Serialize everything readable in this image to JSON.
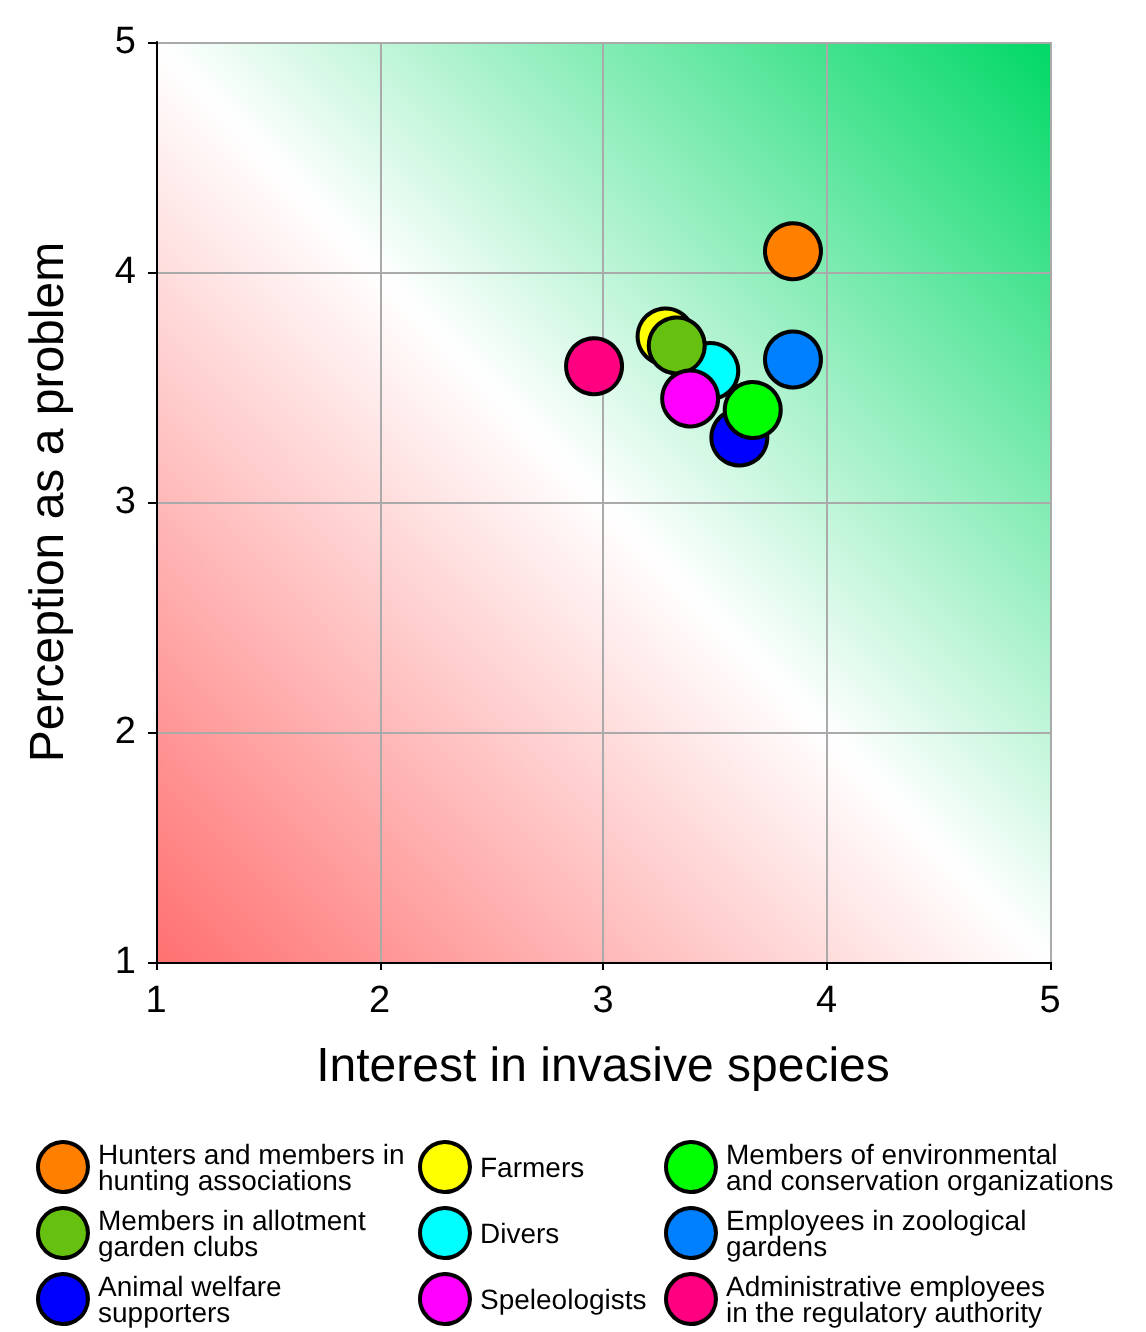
{
  "chart_data": {
    "type": "scatter",
    "xlabel": "Interest in invasive species",
    "ylabel": "Perception as a problem",
    "xlim": [
      1,
      5
    ],
    "xticks": [
      1,
      2,
      3,
      4,
      5
    ],
    "ylim": [
      1,
      5
    ],
    "yticks": [
      1,
      2,
      3,
      4,
      5
    ],
    "grid": true,
    "legend": "bottom",
    "marker": "circle",
    "series": [
      {
        "name": "Hunters and members in hunting associations",
        "color": "#ff8000",
        "x": [
          3.85
        ],
        "values": [
          4.09
        ]
      },
      {
        "name": "Farmers",
        "color": "#ffff00",
        "x": [
          3.28
        ],
        "values": [
          3.72
        ]
      },
      {
        "name": "Members of environmental and conservation organizations",
        "color": "#00ff00",
        "x": [
          3.67
        ],
        "values": [
          3.4
        ]
      },
      {
        "name": "Members in allotment garden clubs",
        "color": "#66c010",
        "x": [
          3.33
        ],
        "values": [
          3.68
        ]
      },
      {
        "name": "Divers",
        "color": "#00ffff",
        "x": [
          3.48
        ],
        "values": [
          3.57
        ]
      },
      {
        "name": "Employees in zoological gardens",
        "color": "#0080ff",
        "x": [
          3.85
        ],
        "values": [
          3.62
        ]
      },
      {
        "name": "Animal welfare supporters",
        "color": "#0000ff",
        "x": [
          3.61
        ],
        "values": [
          3.28
        ]
      },
      {
        "name": "Speleologists",
        "color": "#ff00ff",
        "x": [
          3.39
        ],
        "values": [
          3.45
        ]
      },
      {
        "name": "Administrative employees in the regulatory authority",
        "color": "#ff0080",
        "x": [
          2.96
        ],
        "values": [
          3.59
        ]
      }
    ]
  }
}
